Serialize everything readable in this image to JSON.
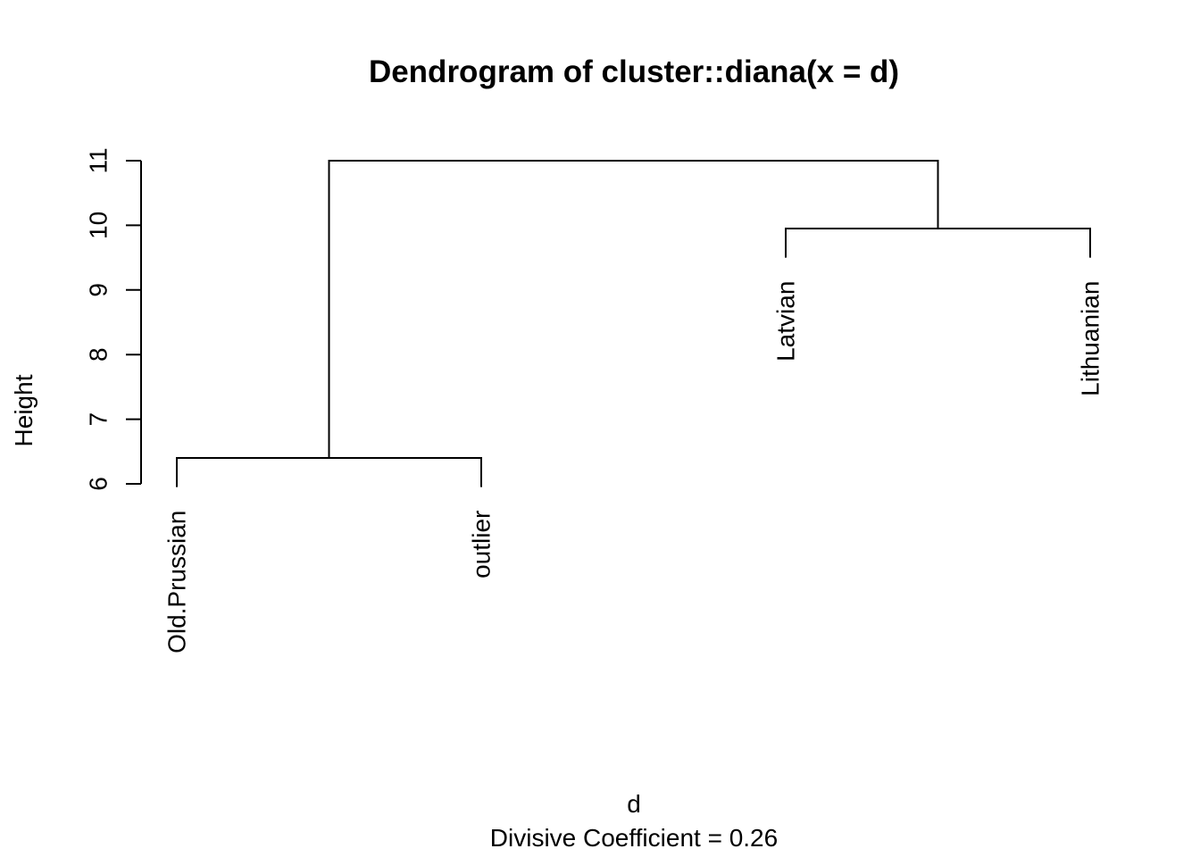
{
  "chart_data": {
    "type": "dendrogram",
    "title": "Dendrogram of  cluster::diana(x = d)",
    "xlabel": "d",
    "sublabel": "Divisive Coefficient =  0.26",
    "ylabel": "Height",
    "yticks": [
      "6",
      "7",
      "8",
      "9",
      "10",
      "11"
    ],
    "ylim": [
      6,
      11
    ],
    "leaves": [
      {
        "label": "Old.Prussian",
        "position": 1,
        "height": 6.4
      },
      {
        "label": "outlier",
        "position": 2,
        "height": 6.4
      },
      {
        "label": "Latvian",
        "position": 3,
        "height": 9.95
      },
      {
        "label": "Lithuanian",
        "position": 4,
        "height": 9.95
      }
    ],
    "merges": [
      {
        "left": "Old.Prussian",
        "right": "outlier",
        "height": 6.4
      },
      {
        "left": "Latvian",
        "right": "Lithuanian",
        "height": 9.95
      },
      {
        "left": "Old.Prussian + outlier",
        "right": "Latvian + Lithuanian",
        "height": 11.0
      }
    ]
  }
}
